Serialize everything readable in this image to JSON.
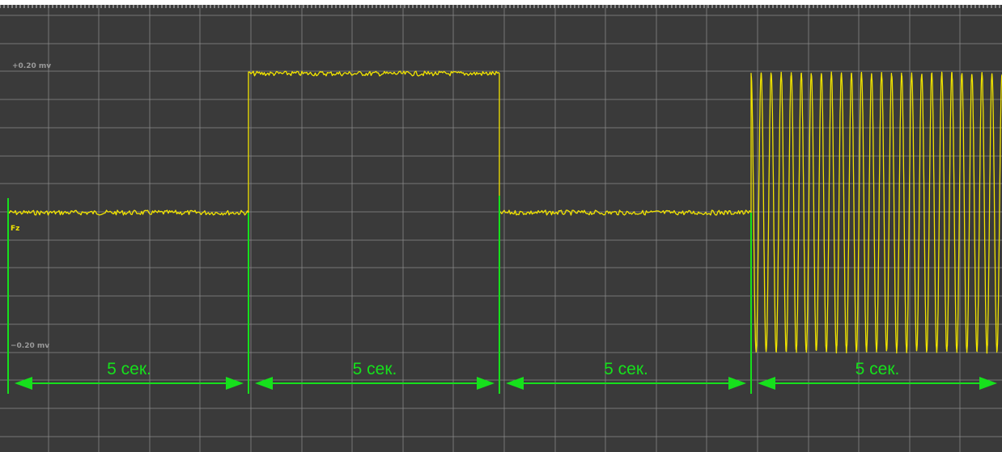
{
  "chart_data": {
    "type": "line",
    "channel_label": "Fz",
    "y_scale_labels": {
      "top": "+0.20 mv",
      "bottom": "−0.20 mv"
    },
    "x_unit": "s",
    "y_unit": "mV",
    "x_range": [
      0,
      20
    ],
    "y_range": [
      -0.2,
      0.2
    ],
    "grid": true,
    "segments": [
      {
        "label": "5 сек.",
        "x_start": 0,
        "x_end": 5,
        "kind": "baseline",
        "level": 0.0
      },
      {
        "label": "5 сек.",
        "x_start": 5,
        "x_end": 10,
        "kind": "step",
        "level": 0.2
      },
      {
        "label": "5 сек.",
        "x_start": 10,
        "x_end": 15,
        "kind": "baseline",
        "level": 0.0
      },
      {
        "label": "5 сек.",
        "x_start": 15,
        "x_end": 20,
        "kind": "sine",
        "amplitude": 0.2,
        "frequency_hz": 10
      }
    ],
    "colors": {
      "background": "#3a3a3a",
      "grid": "#8a8a8a",
      "signal": "#f2e400",
      "annotation": "#16e01c",
      "scale_text": "#9a9a9a"
    }
  }
}
